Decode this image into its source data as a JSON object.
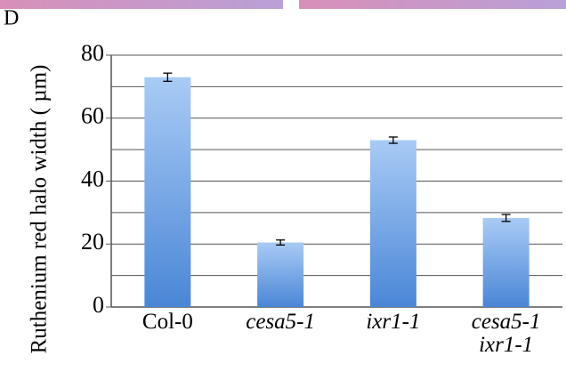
{
  "panel_label": "D",
  "chart_data": {
    "type": "bar",
    "y_label": "Ruthenium red halo width ( µm)",
    "categories": [
      "Col-0",
      "cesa5-1",
      "ixr1-1",
      "cesa5-1\nixr1-1"
    ],
    "category_italic": [
      false,
      true,
      true,
      true
    ],
    "values": [
      73,
      20.5,
      53,
      28.3
    ],
    "errors": [
      1.3,
      0.8,
      1.0,
      1.1
    ],
    "color": "#4a86d6",
    "ylim": [
      0,
      80
    ],
    "yticks": [
      0,
      20,
      40,
      60,
      80
    ],
    "minor_yticks": [
      10,
      30,
      50,
      70
    ],
    "grid": true
  }
}
